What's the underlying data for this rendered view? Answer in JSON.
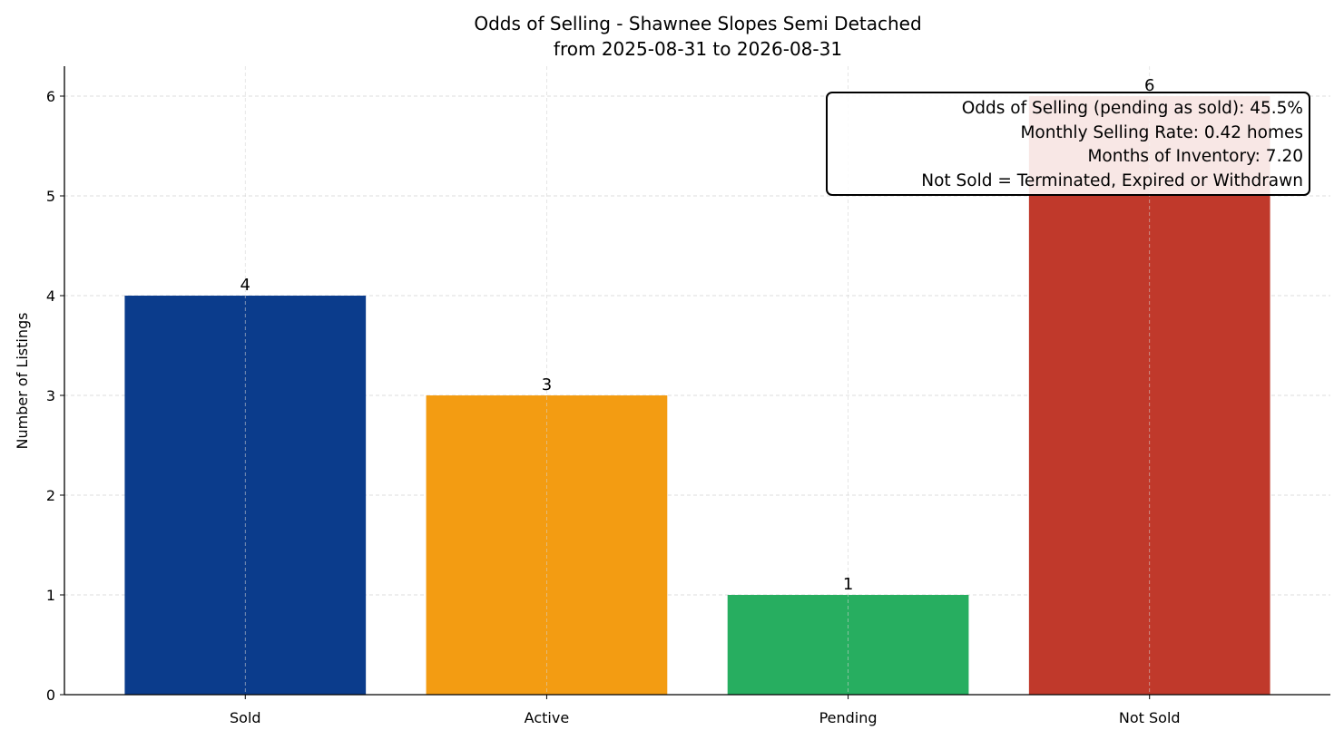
{
  "chart_data": {
    "type": "bar",
    "title": "Odds of Selling - Shawnee Slopes Semi Detached",
    "subtitle": "from 2025-08-31 to 2026-08-31",
    "xlabel": "",
    "ylabel": "Number of Listings",
    "categories": [
      "Sold",
      "Active",
      "Pending",
      "Not Sold"
    ],
    "values": [
      4,
      3,
      1,
      6
    ],
    "colors": [
      "#0b3c8c",
      "#f39c12",
      "#27ae60",
      "#c0392b"
    ],
    "ylim": [
      0,
      6.3
    ],
    "yticks": [
      0,
      1,
      2,
      3,
      4,
      5,
      6
    ],
    "grid": true,
    "annotation": [
      "Odds of Selling (pending as sold): 45.5%",
      "Monthly Selling Rate: 0.42 homes",
      "Months of Inventory: 7.20",
      "Not Sold = Terminated, Expired or Withdrawn"
    ]
  }
}
